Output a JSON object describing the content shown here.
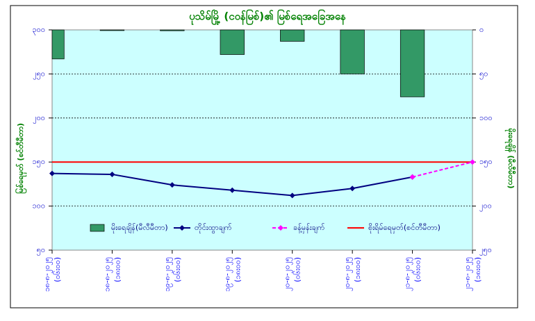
{
  "chart_data": {
    "type": "bar_line",
    "title": "ပုသိမ်မြို့ (ငဝန်မြစ်)၏ မြစ်ရေအခြေအနေ",
    "ylabel": "မြစ်ရေမှတ် (စင်တီမီတာ)",
    "y2label": "မိုးရေချိန် (မီလီမီတာ)",
    "categories": [
      [
        "၁၈-၈-၂၀၂၅",
        "(၀၆း၀၀)"
      ],
      [
        "၁၈-၈-၂၀၂၅",
        "(၁၈း၀၀)"
      ],
      [
        "၁၉-၈-၂၀၂၅",
        "(၀၆း၀၀)"
      ],
      [
        "၁၉-၈-၂၀၂၅",
        "(၁၈း၀၀)"
      ],
      [
        "၂၀-၈-၂၀၂၅",
        "(၀၆း၀၀)"
      ],
      [
        "၂၀-၈-၂၀၂၅",
        "(၁၈း၀၀)"
      ],
      [
        "၂၁-၈-၂၀၂၅",
        "(၀၆း၀၀)"
      ],
      [
        "၂၁-၈-၂၀၂၅",
        "(၁၈း၀၀)"
      ]
    ],
    "series": [
      {
        "name": "မိုးရေချိန်(မီလီမီတာ)",
        "kind": "bar",
        "axis": "y2",
        "color": "#339966",
        "values": [
          33,
          0,
          1,
          28,
          13,
          50,
          76,
          null
        ]
      },
      {
        "name": "တိုင်းထွာချက်",
        "kind": "line",
        "color": "#000080",
        "values": [
          137,
          136,
          124,
          118,
          112,
          120,
          133,
          null
        ]
      },
      {
        "name": "ခန့်မှန်းချက်",
        "kind": "dashed",
        "color": "#ff00ff",
        "values": [
          null,
          null,
          null,
          null,
          null,
          null,
          133,
          150
        ]
      }
    ],
    "threshold": {
      "name": "စိုးရိမ်ရေမှတ်(စင်တီမီတာ)",
      "value": 150,
      "color": "#ff0000"
    },
    "ylim": [
      50,
      300
    ],
    "yticks": [
      {
        "value": 50,
        "label": "၅၀"
      },
      {
        "value": 100,
        "label": "၁၀၀"
      },
      {
        "value": 150,
        "label": "၁၅၀"
      },
      {
        "value": 200,
        "label": "၂၀၀"
      },
      {
        "value": 250,
        "label": "၂၅၀"
      },
      {
        "value": 300,
        "label": "၃၀၀"
      }
    ],
    "y2lim": [
      0,
      250
    ],
    "y2_inverted": true,
    "y2ticks": [
      {
        "value": 0,
        "label": "၀"
      },
      {
        "value": 50,
        "label": "၅၀"
      },
      {
        "value": 100,
        "label": "၁၀၀"
      },
      {
        "value": 150,
        "label": "၁၅၀"
      },
      {
        "value": 200,
        "label": "၂၀၀"
      },
      {
        "value": 250,
        "label": "၂၅၀"
      }
    ],
    "grid": true,
    "background": "#ccffff"
  }
}
